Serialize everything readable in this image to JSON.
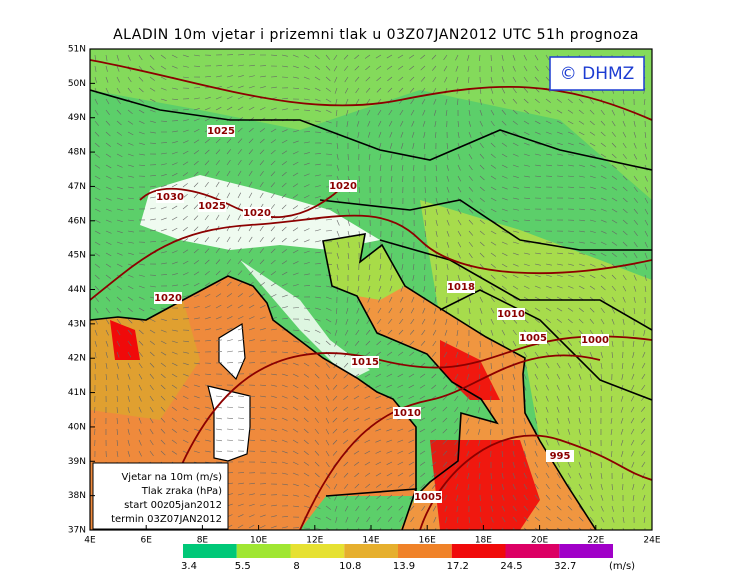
{
  "title": "ALADIN 10m vjetar i prizemni tlak u 03Z07JAN2012 UTC 51h prognoza",
  "logo": "© DHMZ",
  "map": {
    "lat_labels": [
      "37N",
      "38N",
      "39N",
      "40N",
      "41N",
      "42N",
      "43N",
      "44N",
      "45N",
      "46N",
      "47N",
      "48N",
      "49N",
      "50N",
      "51N"
    ],
    "lon_labels": [
      "4E",
      "6E",
      "8E",
      "10E",
      "12E",
      "14E",
      "16E",
      "18E",
      "20E",
      "22E",
      "24E"
    ],
    "isobar_labels": [
      1030,
      1025,
      1025,
      1020,
      1020,
      1020,
      1018,
      1015,
      1010,
      1010,
      1005,
      1005,
      1000,
      995
    ]
  },
  "info_box": [
    "Vjetar na 10m (m/s)",
    "Tlak zraka (hPa)",
    "start 00z05jan2012",
    "termin 03Z07JAN2012"
  ],
  "colorbar": {
    "levels": [
      3.4,
      5.5,
      8,
      10.8,
      13.9,
      17.2,
      24.5,
      32.7
    ],
    "colors": [
      "#00c878",
      "#a0e632",
      "#e6e132",
      "#e6af2d",
      "#f08228",
      "#f00a0a",
      "#dc0064",
      "#a000c8"
    ],
    "unit": "(m/s)"
  }
}
